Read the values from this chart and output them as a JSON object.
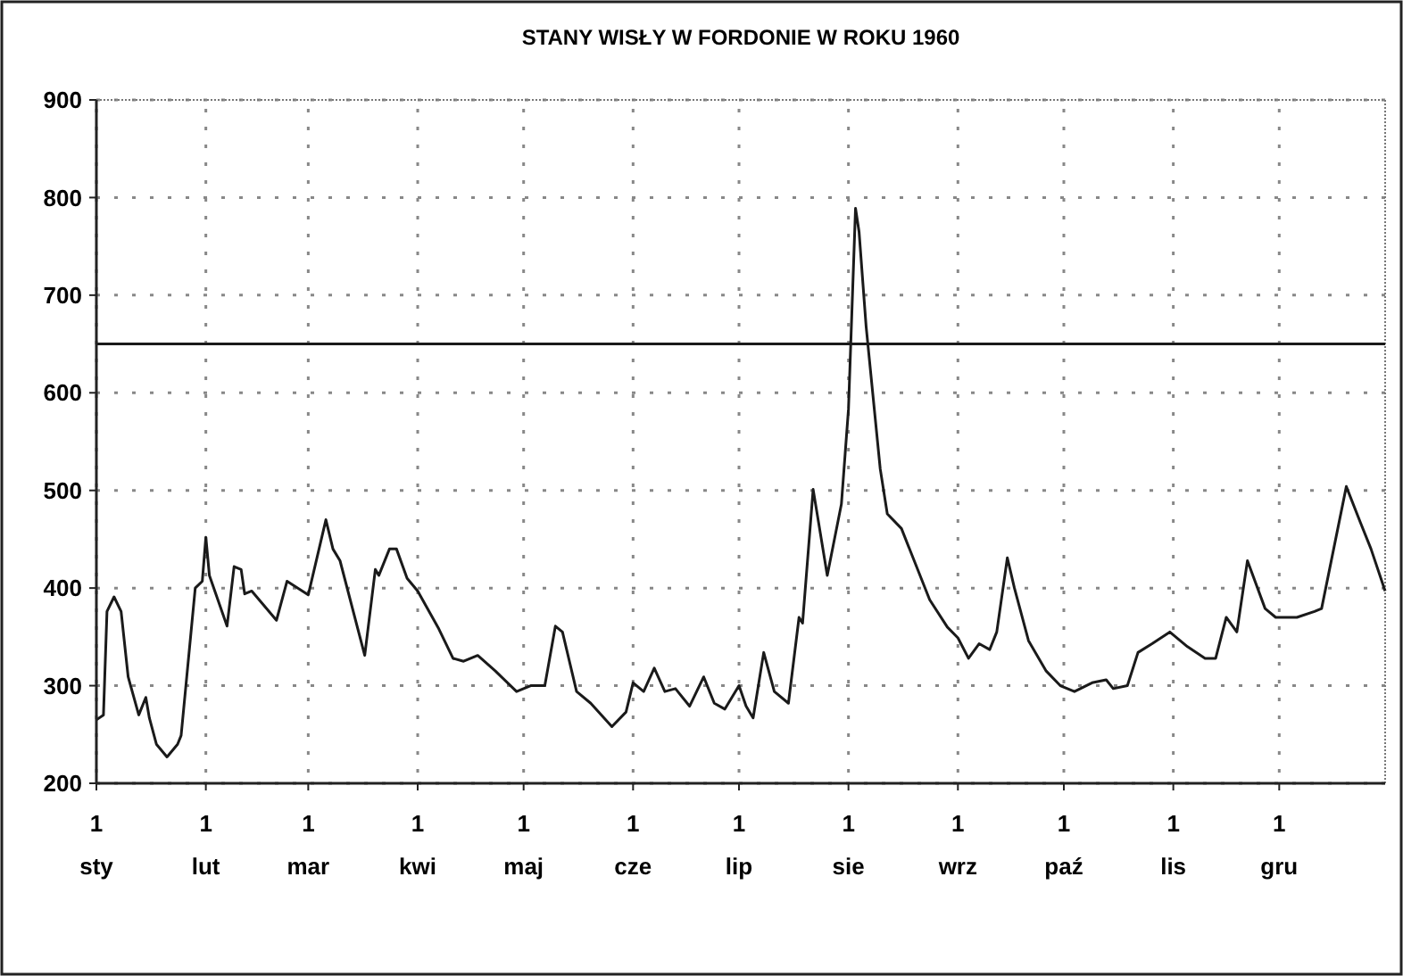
{
  "chart_data": {
    "type": "line",
    "title": "STANY WISŁY W FORDONIE W ROKU 1960",
    "x": [
      "1960-01-01",
      "1960-01-03",
      "1960-01-04",
      "1960-01-06",
      "1960-01-08",
      "1960-01-10",
      "1960-01-13",
      "1960-01-15",
      "1960-01-16",
      "1960-01-18",
      "1960-01-21",
      "1960-01-24",
      "1960-01-25",
      "1960-01-29",
      "1960-01-31",
      "1960-02-01",
      "1960-02-02",
      "1960-02-07",
      "1960-02-09",
      "1960-02-11",
      "1960-02-12",
      "1960-02-14",
      "1960-02-21",
      "1960-02-24",
      "1960-03-01",
      "1960-03-06",
      "1960-03-08",
      "1960-03-10",
      "1960-03-17",
      "1960-03-20",
      "1960-03-21",
      "1960-03-24",
      "1960-03-26",
      "1960-03-29",
      "1960-04-01",
      "1960-04-07",
      "1960-04-11",
      "1960-04-14",
      "1960-04-18",
      "1960-04-23",
      "1960-04-29",
      "1960-05-03",
      "1960-05-07",
      "1960-05-10",
      "1960-05-12",
      "1960-05-16",
      "1960-05-20",
      "1960-05-26",
      "1960-05-30",
      "1960-06-01",
      "1960-06-04",
      "1960-06-07",
      "1960-06-10",
      "1960-06-13",
      "1960-06-17",
      "1960-06-21",
      "1960-06-24",
      "1960-06-27",
      "1960-07-01",
      "1960-07-03",
      "1960-07-05",
      "1960-07-08",
      "1960-07-11",
      "1960-07-15",
      "1960-07-18",
      "1960-07-19",
      "1960-07-22",
      "1960-07-26",
      "1960-07-30",
      "1960-08-01",
      "1960-08-03",
      "1960-08-04",
      "1960-08-06",
      "1960-08-10",
      "1960-08-12",
      "1960-08-16",
      "1960-08-24",
      "1960-08-29",
      "1960-09-01",
      "1960-09-04",
      "1960-09-07",
      "1960-09-10",
      "1960-09-12",
      "1960-09-15",
      "1960-09-17",
      "1960-09-21",
      "1960-09-26",
      "1960-09-30",
      "1960-10-04",
      "1960-10-09",
      "1960-10-13",
      "1960-10-15",
      "1960-10-19",
      "1960-10-22",
      "1960-10-26",
      "1960-10-31",
      "1960-11-05",
      "1960-11-10",
      "1960-11-13",
      "1960-11-16",
      "1960-11-19",
      "1960-11-22",
      "1960-11-27",
      "1960-11-30",
      "1960-12-06",
      "1960-12-11",
      "1960-12-13",
      "1960-12-20",
      "1960-12-24",
      "1960-12-27",
      "1960-12-31"
    ],
    "series": [
      {
        "color": "#1a1a1a",
        "values": [
          265,
          270,
          376,
          391,
          376,
          309,
          270,
          288,
          267,
          240,
          227,
          240,
          249,
          400,
          407,
          452,
          413,
          361,
          422,
          419,
          394,
          397,
          367,
          407,
          393,
          470,
          440,
          428,
          331,
          419,
          413,
          440,
          440,
          410,
          397,
          358,
          328,
          325,
          331,
          315,
          294,
          300,
          300,
          361,
          355,
          294,
          282,
          258,
          273,
          303,
          294,
          318,
          294,
          297,
          279,
          309,
          282,
          276,
          300,
          279,
          267,
          334,
          294,
          282,
          370,
          364,
          501,
          413,
          486,
          583,
          789,
          765,
          668,
          522,
          476,
          461,
          388,
          360,
          349,
          328,
          343,
          337,
          355,
          431,
          400,
          346,
          315,
          300,
          294,
          303,
          306,
          297,
          300,
          334,
          343,
          355,
          340,
          328,
          328,
          370,
          355,
          428,
          379,
          370,
          370,
          376,
          379,
          504,
          467,
          440,
          397
        ]
      }
    ],
    "xlim": [
      "1960-01-01",
      "1960-12-31"
    ],
    "xticks": [
      {
        "value": "1960-01-01",
        "label": "1 sty"
      },
      {
        "value": "1960-02-01",
        "label": "1 lut"
      },
      {
        "value": "1960-03-01",
        "label": "1 mar"
      },
      {
        "value": "1960-04-01",
        "label": "1 kwi"
      },
      {
        "value": "1960-05-01",
        "label": "1 maj"
      },
      {
        "value": "1960-06-01",
        "label": "1 cze"
      },
      {
        "value": "1960-07-01",
        "label": "1 lip"
      },
      {
        "value": "1960-08-01",
        "label": "1 sie"
      },
      {
        "value": "1960-09-01",
        "label": "1 wrz"
      },
      {
        "value": "1960-10-01",
        "label": "1 paź"
      },
      {
        "value": "1960-11-01",
        "label": "1 lis"
      },
      {
        "value": "1960-12-01",
        "label": "1 gru"
      }
    ],
    "ylim": [
      200,
      900
    ],
    "yticks": [
      200,
      300,
      400,
      500,
      600,
      700,
      800,
      900
    ],
    "grid": true,
    "line_style": "solid",
    "ref_lines": [
      {
        "axis": "y",
        "value": 650,
        "color": "#1a1a1a",
        "line_style": "solid"
      }
    ]
  }
}
